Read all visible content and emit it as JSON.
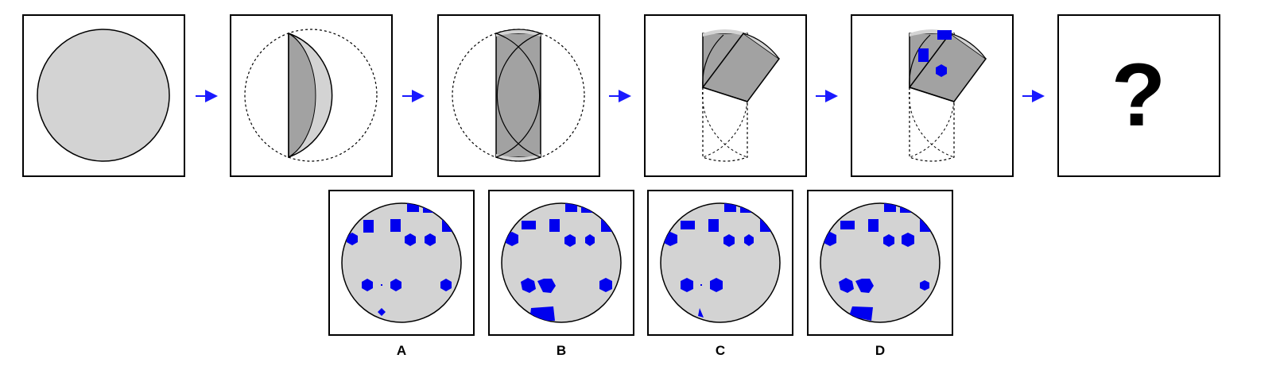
{
  "puzzle": {
    "question_mark": "?",
    "option_labels": [
      "A",
      "B",
      "C",
      "D"
    ]
  },
  "colors": {
    "background": "#ffffff",
    "paper": "#d3d3d3",
    "paper_folded": "#a2a2a2",
    "hole": "#0000ee",
    "arrow": "#1a1aff",
    "frame": "#000000"
  }
}
